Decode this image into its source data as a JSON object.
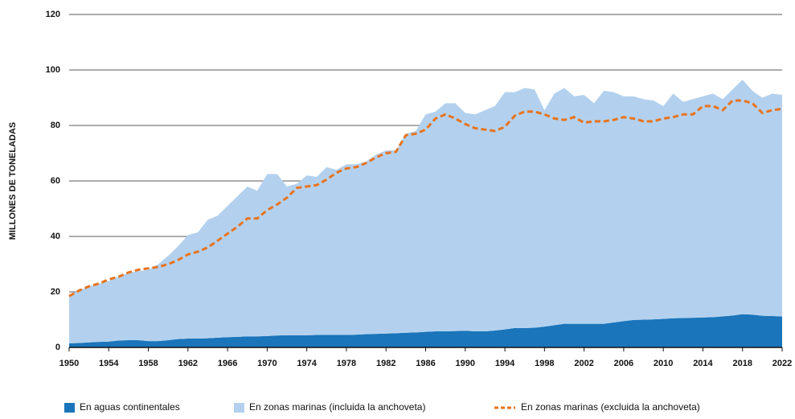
{
  "chart_data": {
    "type": "stacked_area_line",
    "y_label": "MILLONES DE TONELADAS",
    "x": [
      1950,
      1951,
      1952,
      1953,
      1954,
      1955,
      1956,
      1957,
      1958,
      1959,
      1960,
      1961,
      1962,
      1963,
      1964,
      1965,
      1966,
      1967,
      1968,
      1969,
      1970,
      1971,
      1972,
      1973,
      1974,
      1975,
      1976,
      1977,
      1978,
      1979,
      1980,
      1981,
      1982,
      1983,
      1984,
      1985,
      1986,
      1987,
      1988,
      1989,
      1990,
      1991,
      1992,
      1993,
      1994,
      1995,
      1996,
      1997,
      1998,
      1999,
      2000,
      2001,
      2002,
      2003,
      2004,
      2005,
      2006,
      2007,
      2008,
      2009,
      2010,
      2011,
      2012,
      2013,
      2014,
      2015,
      2016,
      2017,
      2018,
      2019,
      2020,
      2021,
      2022
    ],
    "series": [
      {
        "name": "En aguas continentales",
        "kind": "area",
        "color": "#1a75bb",
        "values": [
          1.5,
          1.6,
          1.8,
          2.0,
          2.1,
          2.5,
          2.6,
          2.6,
          2.3,
          2.3,
          2.6,
          3.0,
          3.2,
          3.2,
          3.3,
          3.5,
          3.7,
          3.8,
          4.0,
          4.0,
          4.1,
          4.3,
          4.4,
          4.4,
          4.4,
          4.5,
          4.5,
          4.5,
          4.5,
          4.6,
          4.8,
          4.9,
          5.0,
          5.1,
          5.3,
          5.4,
          5.6,
          5.8,
          5.8,
          5.9,
          6.0,
          5.8,
          5.8,
          6.1,
          6.5,
          7.0,
          7.0,
          7.1,
          7.5,
          8.0,
          8.5,
          8.5,
          8.5,
          8.5,
          8.5,
          9.0,
          9.5,
          9.9,
          10.0,
          10.1,
          10.3,
          10.5,
          10.6,
          10.7,
          10.8,
          10.9,
          11.2,
          11.5,
          12.0,
          11.8,
          11.4,
          11.3,
          11.2
        ]
      },
      {
        "name": "En zonas marinas (incluida la anchoveta)",
        "kind": "area",
        "color": "#b3d1ee",
        "values": [
          17.5,
          18.9,
          20.2,
          21.0,
          21.9,
          23.0,
          24.4,
          24.9,
          25.7,
          27.7,
          30.4,
          33.5,
          37.3,
          38.3,
          42.7,
          44.0,
          47.3,
          50.7,
          54.0,
          52.5,
          58.4,
          58.2,
          53.6,
          54.6,
          57.6,
          57.0,
          60.5,
          59.5,
          61.5,
          61.4,
          62.2,
          64.6,
          66.0,
          65.9,
          71.7,
          72.6,
          78.4,
          79.2,
          82.2,
          82.1,
          78.5,
          78.2,
          79.7,
          80.9,
          85.5,
          85.0,
          86.5,
          85.9,
          78.0,
          83.5,
          85.0,
          82.0,
          82.5,
          79.5,
          84.0,
          83.0,
          81.0,
          80.6,
          79.5,
          78.9,
          76.7,
          81.0,
          77.9,
          78.8,
          79.7,
          80.6,
          78.3,
          81.5,
          84.5,
          80.7,
          78.6,
          80.2,
          79.8
        ]
      },
      {
        "name": "En zonas marinas (excluida la anchoveta)",
        "kind": "line",
        "dashed": true,
        "color": "#e8731e",
        "values": [
          18.5,
          20.5,
          22,
          23,
          24.5,
          25.5,
          27,
          28,
          28.5,
          29,
          30,
          31.5,
          33.5,
          34.5,
          36,
          38.5,
          41,
          43.5,
          46.5,
          46.5,
          49.5,
          51.5,
          54,
          57.5,
          58,
          58.5,
          60.5,
          63,
          64.5,
          65,
          66.5,
          68.5,
          70,
          70.5,
          76.5,
          77,
          78.5,
          82.5,
          84,
          82.5,
          80.5,
          79,
          78.5,
          78,
          79.5,
          83.5,
          85,
          85,
          84,
          82.5,
          82,
          83,
          81,
          81.5,
          81.5,
          82,
          83,
          82.5,
          81.5,
          81.5,
          82.5,
          83,
          84,
          84,
          87,
          87,
          85.5,
          89,
          89,
          88,
          84.5,
          85.5,
          86
        ]
      }
    ],
    "xlim": [
      1950,
      2022
    ],
    "xticks": [
      1950,
      1954,
      1958,
      1962,
      1966,
      1970,
      1974,
      1978,
      1982,
      1986,
      1990,
      1994,
      1998,
      2002,
      2006,
      2010,
      2014,
      2018,
      2022
    ],
    "ylim": [
      0,
      120
    ],
    "yticks": [
      0,
      20,
      40,
      60,
      80,
      100,
      120
    ],
    "grid": true
  }
}
